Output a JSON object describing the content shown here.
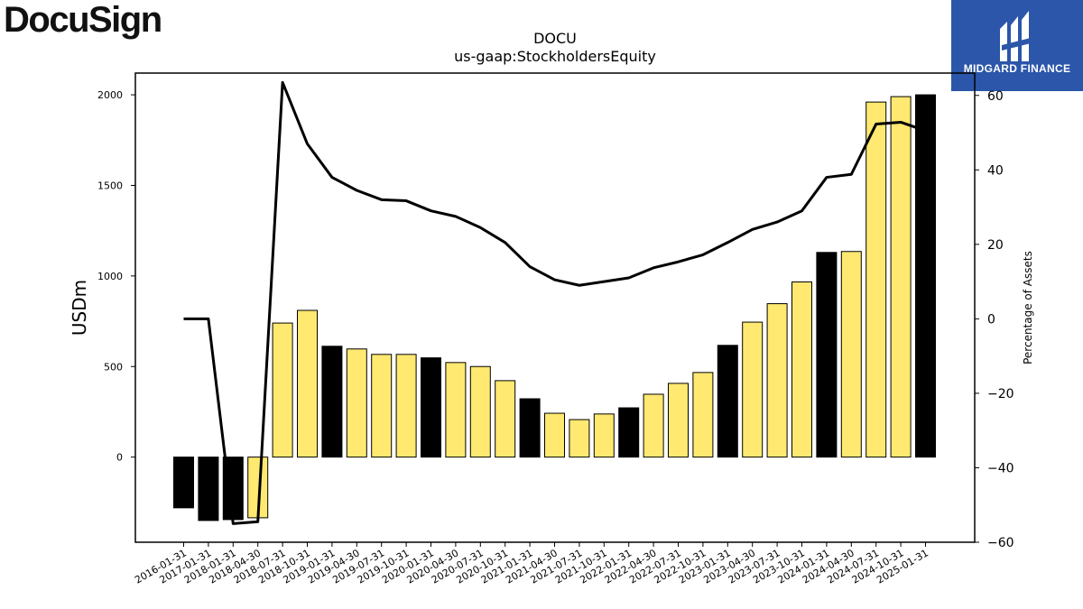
{
  "logo_left": "DocuSign",
  "brand": {
    "name": "MIDGARD FINANCE",
    "color": "#2b56a9"
  },
  "colors": {
    "highlight": "#000000",
    "normal": "#ffe970",
    "line": "#000000"
  },
  "chart_data": {
    "type": "bar",
    "title": "DOCU",
    "subtitle": "us-gaap:StockholdersEquity",
    "ylabel": "USDm",
    "y2label": "Percentage of Assets",
    "ylim": [
      -470,
      2120
    ],
    "y2lim": [
      -60,
      66
    ],
    "yticks": [
      0,
      500,
      1000,
      1500,
      2000
    ],
    "y2ticks": [
      -60,
      -40,
      -20,
      0,
      20,
      40,
      60
    ],
    "categories": [
      "2016-01-31",
      "2017-01-31",
      "2018-01-31",
      "2018-04-30",
      "2018-07-31",
      "2018-10-31",
      "2019-01-31",
      "2019-04-30",
      "2019-07-31",
      "2019-10-31",
      "2020-01-31",
      "2020-04-30",
      "2020-07-31",
      "2020-10-31",
      "2021-01-31",
      "2021-04-30",
      "2021-07-31",
      "2021-10-31",
      "2022-01-31",
      "2022-04-30",
      "2022-07-31",
      "2022-10-31",
      "2023-01-31",
      "2023-04-30",
      "2023-07-31",
      "2023-10-31",
      "2024-01-31",
      "2024-04-30",
      "2024-07-31",
      "2024-10-31",
      "2025-01-31"
    ],
    "series": [
      {
        "type": "bar",
        "values": [
          -280,
          -350,
          -345,
          -335,
          740,
          810,
          612,
          597,
          567,
          567,
          548,
          522,
          500,
          422,
          322,
          242,
          207,
          238,
          272,
          347,
          407,
          467,
          617,
          745,
          847,
          967,
          1130,
          1135,
          1960,
          1990,
          2000
        ]
      },
      {
        "type": "line",
        "values": [
          0,
          0,
          -55,
          -54.5,
          63.5,
          47,
          38,
          34.5,
          32,
          31.7,
          29,
          27.5,
          24.5,
          20.5,
          14,
          10.5,
          9,
          10,
          11,
          13.7,
          15.3,
          17.2,
          20.5,
          24,
          26,
          29,
          38,
          38.8,
          52.3,
          52.8,
          50.5
        ]
      }
    ],
    "highlight": [
      true,
      true,
      true,
      false,
      false,
      false,
      true,
      false,
      false,
      false,
      true,
      false,
      false,
      false,
      true,
      false,
      false,
      false,
      true,
      false,
      false,
      false,
      true,
      false,
      false,
      false,
      true,
      false,
      false,
      false,
      true
    ]
  }
}
